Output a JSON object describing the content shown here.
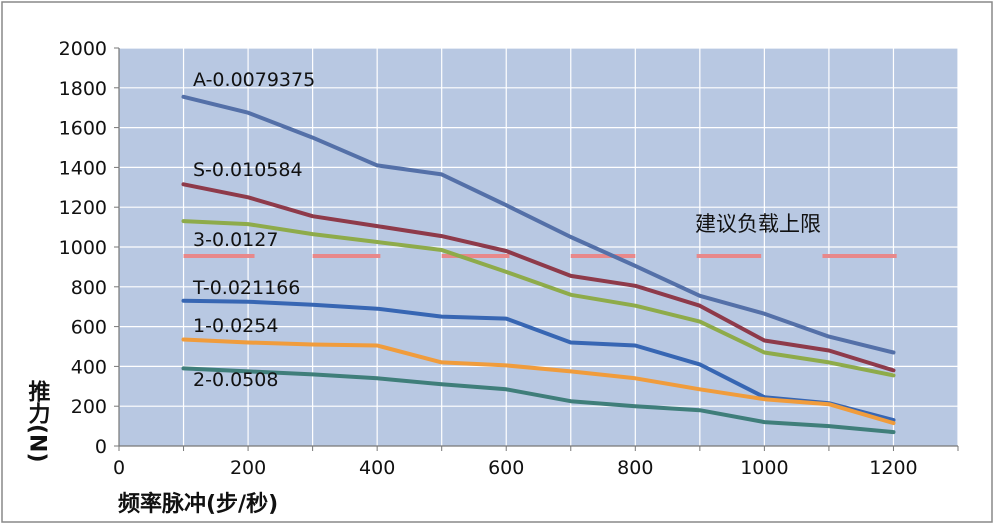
{
  "chart_data": {
    "type": "line",
    "xlabel": "频率脉冲(步/秒)",
    "ylabel": "推力(N)",
    "xlim": [
      0,
      1300
    ],
    "ylim": [
      0,
      2000
    ],
    "x_ticks": [
      0,
      200,
      400,
      600,
      800,
      1000,
      1200
    ],
    "y_ticks": [
      0,
      200,
      400,
      600,
      800,
      1000,
      1200,
      1400,
      1600,
      1800,
      2000
    ],
    "grid": true,
    "background": "#b8c8e2",
    "series": [
      {
        "name": "A-0.0079375",
        "color": "#5470a8",
        "x": [
          100,
          200,
          300,
          400,
          500,
          600,
          700,
          800,
          900,
          1000,
          1100,
          1200
        ],
        "values": [
          1755,
          1675,
          1550,
          1410,
          1365,
          1210,
          1050,
          905,
          755,
          665,
          550,
          470
        ]
      },
      {
        "name": "S-0.010584",
        "color": "#8e3a4a",
        "x": [
          100,
          200,
          300,
          400,
          500,
          600,
          700,
          800,
          900,
          1000,
          1100,
          1200
        ],
        "values": [
          1315,
          1250,
          1155,
          1105,
          1055,
          980,
          855,
          805,
          705,
          530,
          480,
          380
        ]
      },
      {
        "name": "3-0.0127",
        "color": "#8eab4a",
        "x": [
          100,
          200,
          300,
          400,
          500,
          600,
          700,
          800,
          900,
          1000,
          1100,
          1200
        ],
        "values": [
          1130,
          1115,
          1065,
          1025,
          985,
          875,
          760,
          705,
          625,
          470,
          420,
          355
        ]
      },
      {
        "name": "T-0.021166",
        "color": "#3766b3",
        "x": [
          100,
          200,
          300,
          400,
          500,
          600,
          700,
          800,
          900,
          1000,
          1100,
          1200
        ],
        "values": [
          730,
          725,
          710,
          690,
          650,
          640,
          520,
          505,
          410,
          245,
          215,
          130
        ]
      },
      {
        "name": "1-0.0254",
        "color": "#f09c3c",
        "x": [
          100,
          200,
          300,
          400,
          500,
          600,
          700,
          800,
          900,
          1000,
          1100,
          1200
        ],
        "values": [
          535,
          520,
          510,
          505,
          420,
          405,
          375,
          340,
          285,
          235,
          210,
          115
        ]
      },
      {
        "name": "2-0.0508",
        "color": "#3f7e7a",
        "x": [
          100,
          200,
          300,
          400,
          500,
          600,
          700,
          800,
          900,
          1000,
          1100,
          1200
        ],
        "values": [
          390,
          375,
          360,
          340,
          310,
          285,
          225,
          200,
          180,
          120,
          100,
          70
        ]
      }
    ],
    "reference_line": {
      "label": "建议负载上限",
      "y": 955,
      "color": "#e8888a",
      "dashes": [
        [
          100,
          210
        ],
        [
          300,
          405
        ],
        [
          500,
          605
        ],
        [
          700,
          800
        ],
        [
          895,
          995
        ],
        [
          1090,
          1205
        ]
      ]
    }
  }
}
